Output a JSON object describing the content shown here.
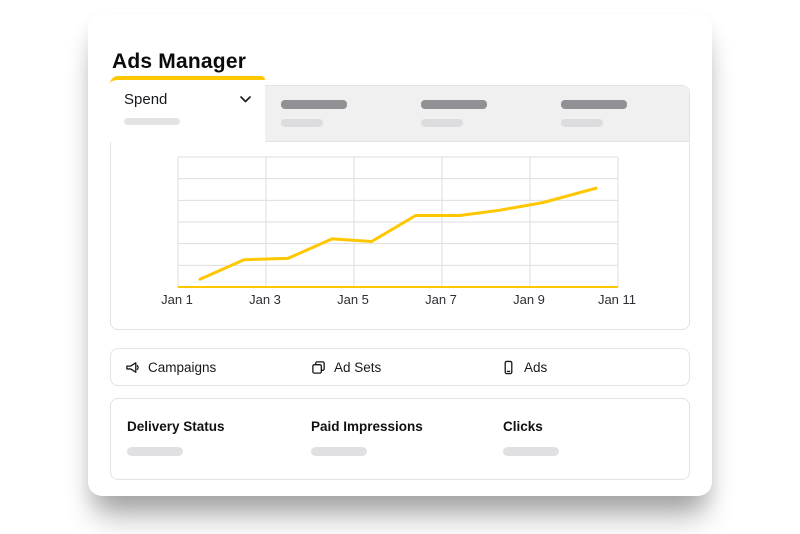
{
  "card": {
    "title": "Ads Manager"
  },
  "tabs": {
    "active_label": "Spend",
    "skeleton_count": 3
  },
  "chart_data": {
    "type": "line",
    "x_ticks": [
      "Jan 1",
      "Jan 3",
      "Jan 5",
      "Jan 7",
      "Jan 9",
      "Jan 11"
    ],
    "x_range": [
      1,
      11
    ],
    "y_range": [
      0,
      100
    ],
    "grid": true,
    "h_divisions": 6,
    "legend": "none",
    "series": [
      {
        "name": "Spend",
        "color": "#FFC700",
        "points": [
          [
            1.5,
            6
          ],
          [
            2.5,
            21
          ],
          [
            3.5,
            22
          ],
          [
            4.5,
            37
          ],
          [
            5.4,
            35
          ],
          [
            6.4,
            55
          ],
          [
            7.4,
            55
          ],
          [
            8.3,
            59
          ],
          [
            9.3,
            65
          ],
          [
            10.5,
            76
          ]
        ]
      }
    ]
  },
  "nav_items": [
    {
      "label": "Campaigns",
      "icon": "megaphone-icon"
    },
    {
      "label": "Ad Sets",
      "icon": "layers-icon"
    },
    {
      "label": "Ads",
      "icon": "phone-icon"
    }
  ],
  "summary": {
    "columns": [
      {
        "label": "Delivery Status"
      },
      {
        "label": "Paid Impressions"
      },
      {
        "label": "Clicks"
      }
    ]
  },
  "colors": {
    "accent": "#FFC700",
    "grid": "#dedee1",
    "skeleton_dark": "#919195",
    "skeleton_light": "#dcdcde",
    "border": "#e3e3e6",
    "text": "#16191c"
  }
}
